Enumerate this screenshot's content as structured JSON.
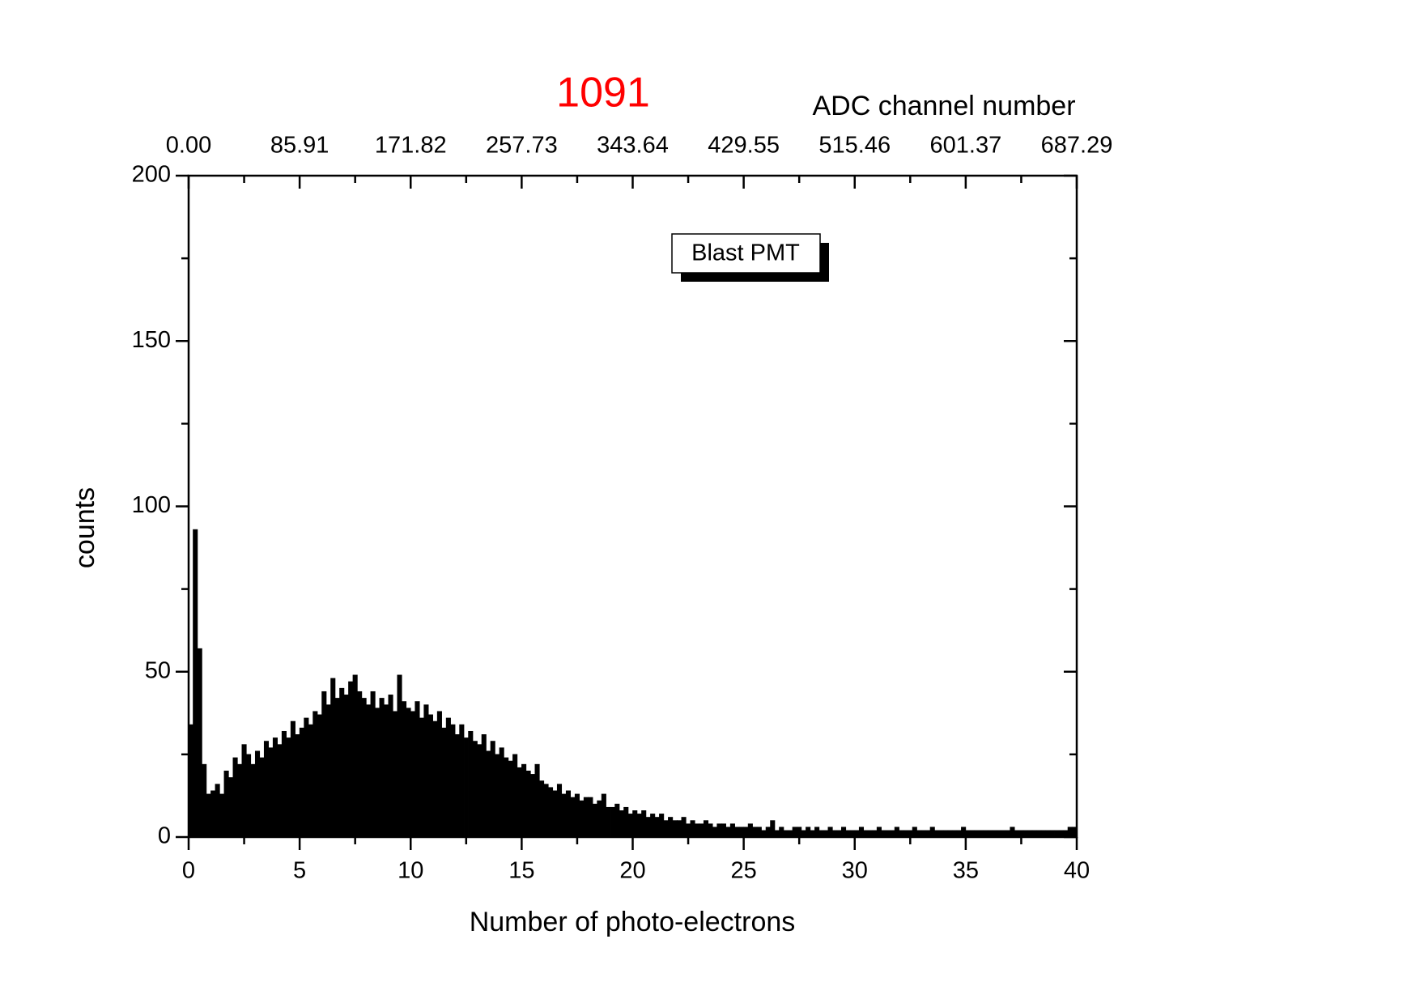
{
  "chart_data": {
    "type": "histogram",
    "title": "1091",
    "title_color": "#ff0000",
    "xlabel": "Number of photo-electrons",
    "ylabel": "counts",
    "x2label": "ADC channel number",
    "name": "Blast PMT",
    "color": "#000000",
    "bins": [
      0,
      0.2,
      0.4,
      0.6,
      0.8,
      1,
      1.2,
      1.4,
      1.6,
      1.8,
      2,
      2.2,
      2.4,
      2.6,
      2.8,
      3,
      3.2,
      3.4,
      3.6,
      3.8,
      4,
      4.2,
      4.4,
      4.6,
      4.8,
      5,
      5.2,
      5.4,
      5.6,
      5.8,
      6,
      6.2,
      6.4,
      6.6,
      6.8,
      7,
      7.2,
      7.4,
      7.6,
      7.8,
      8,
      8.2,
      8.4,
      8.6,
      8.8,
      9,
      9.2,
      9.4,
      9.6,
      9.8,
      10,
      10.2,
      10.4,
      10.6,
      10.8,
      11,
      11.2,
      11.4,
      11.6,
      11.8,
      12,
      12.2,
      12.4,
      12.6,
      12.8,
      13,
      13.2,
      13.4,
      13.6,
      13.8,
      14,
      14.2,
      14.4,
      14.6,
      14.8,
      15,
      15.2,
      15.4,
      15.6,
      15.8,
      16,
      16.2,
      16.4,
      16.6,
      16.8,
      17,
      17.2,
      17.4,
      17.6,
      17.8,
      18,
      18.2,
      18.4,
      18.6,
      18.8,
      19,
      19.2,
      19.4,
      19.6,
      19.8,
      20,
      20.2,
      20.4,
      20.6,
      20.8,
      21,
      21.2,
      21.4,
      21.6,
      21.8,
      22,
      22.2,
      22.4,
      22.6,
      22.8,
      23,
      23.2,
      23.4,
      23.6,
      23.8,
      24,
      24.2,
      24.4,
      24.6,
      24.8,
      25,
      25.2,
      25.4,
      25.6,
      25.8,
      26,
      26.2,
      26.4,
      26.6,
      26.8,
      27,
      27.2,
      27.4,
      27.6,
      27.8,
      28,
      28.2,
      28.4,
      28.6,
      28.8,
      29,
      29.2,
      29.4,
      29.6,
      29.8,
      30,
      30.2,
      30.4,
      30.6,
      30.8,
      31,
      31.2,
      31.4,
      31.6,
      31.8,
      32,
      32.2,
      32.4,
      32.6,
      32.8,
      33,
      33.2,
      33.4,
      33.6,
      33.8,
      34,
      34.2,
      34.4,
      34.6,
      34.8,
      35,
      35.2,
      35.4,
      35.6,
      35.8,
      36,
      36.2,
      36.4,
      36.6,
      36.8,
      37,
      37.2,
      37.4,
      37.6,
      37.8,
      38,
      38.2,
      38.4,
      38.6,
      38.8,
      39,
      39.2,
      39.4,
      39.6,
      39.8,
      40
    ],
    "values": [
      34,
      93,
      57,
      22,
      13,
      14,
      16,
      13,
      20,
      18,
      24,
      22,
      28,
      25,
      22,
      26,
      24,
      29,
      27,
      30,
      28,
      32,
      30,
      35,
      31,
      33,
      36,
      34,
      38,
      37,
      44,
      40,
      48,
      42,
      45,
      43,
      47,
      49,
      44,
      42,
      40,
      44,
      39,
      42,
      40,
      43,
      38,
      49,
      41,
      39,
      38,
      41,
      36,
      40,
      37,
      35,
      38,
      33,
      36,
      34,
      31,
      34,
      30,
      32,
      29,
      28,
      31,
      26,
      29,
      25,
      27,
      24,
      23,
      25,
      21,
      22,
      20,
      19,
      22,
      17,
      16,
      15,
      14,
      16,
      13,
      14,
      12,
      13,
      11,
      12,
      12,
      10,
      11,
      13,
      9,
      9,
      10,
      8,
      9,
      7,
      8,
      7,
      8,
      6,
      7,
      6,
      7,
      5,
      6,
      5,
      5,
      6,
      4,
      5,
      4,
      4,
      5,
      4,
      3,
      4,
      4,
      3,
      4,
      3,
      3,
      3,
      4,
      3,
      3,
      2,
      3,
      5,
      2,
      3,
      2,
      2,
      3,
      3,
      2,
      3,
      2,
      3,
      2,
      2,
      3,
      2,
      2,
      3,
      2,
      2,
      2,
      3,
      2,
      2,
      2,
      3,
      2,
      2,
      2,
      3,
      2,
      2,
      2,
      3,
      2,
      2,
      2,
      3,
      2,
      2,
      2,
      2,
      2,
      2,
      3,
      2,
      2,
      2,
      2,
      2,
      2,
      2,
      2,
      2,
      2,
      3,
      2,
      2,
      2,
      2,
      2,
      2,
      2,
      2,
      2,
      2,
      2,
      2,
      3,
      3
    ],
    "xlim": [
      0,
      40
    ],
    "xticks": [
      0,
      5,
      10,
      15,
      20,
      25,
      30,
      35,
      40
    ],
    "xminorticks": [
      2.5,
      7.5,
      12.5,
      17.5,
      22.5,
      27.5,
      32.5,
      37.5
    ],
    "ylim": [
      0,
      200
    ],
    "yticks": [
      0,
      50,
      100,
      150,
      200
    ],
    "yminorticks": [
      25,
      75,
      125,
      175
    ],
    "x2lim": [
      0,
      687.29
    ],
    "x2ticks": [
      {
        "value": 0,
        "label": "0.00"
      },
      85.91,
      171.82,
      257.73,
      343.64,
      429.55,
      515.46,
      601.37,
      687.29
    ]
  }
}
